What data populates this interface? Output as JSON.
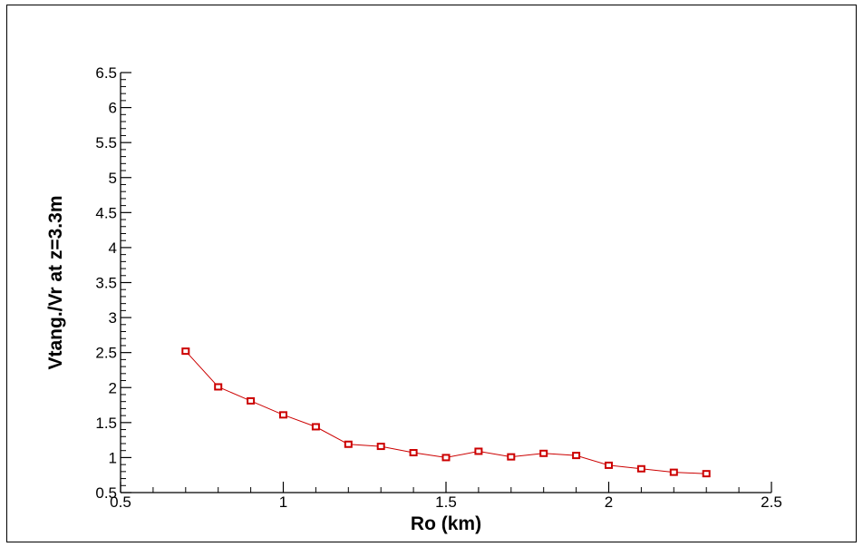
{
  "chart_data": {
    "type": "line",
    "title": "",
    "xlabel": "Ro (km)",
    "ylabel": "Vtang./Vr at z=3.3m",
    "xlim": [
      0.5,
      2.5
    ],
    "ylim": [
      0.5,
      6.5
    ],
    "x_ticks": [
      "0.5",
      "1",
      "1.5",
      "2",
      "2.5"
    ],
    "y_ticks": [
      "0.5",
      "1",
      "1.5",
      "2",
      "2.5",
      "3",
      "3.5",
      "4",
      "4.5",
      "5",
      "5.5",
      "6",
      "6.5"
    ],
    "x_minor_step": 0.1,
    "y_minor_step": 0.1,
    "grid": false,
    "series": [
      {
        "color": "#cc0000",
        "marker": "square",
        "x": [
          0.7,
          0.8,
          0.9,
          1.0,
          1.1,
          1.2,
          1.3,
          1.4,
          1.5,
          1.6,
          1.7,
          1.8,
          1.9,
          2.0,
          2.1,
          2.2,
          2.3
        ],
        "y": [
          2.52,
          2.01,
          1.81,
          1.61,
          1.44,
          1.19,
          1.16,
          1.07,
          1.0,
          1.09,
          1.01,
          1.06,
          1.03,
          0.89,
          0.84,
          0.79,
          0.77
        ]
      }
    ]
  }
}
